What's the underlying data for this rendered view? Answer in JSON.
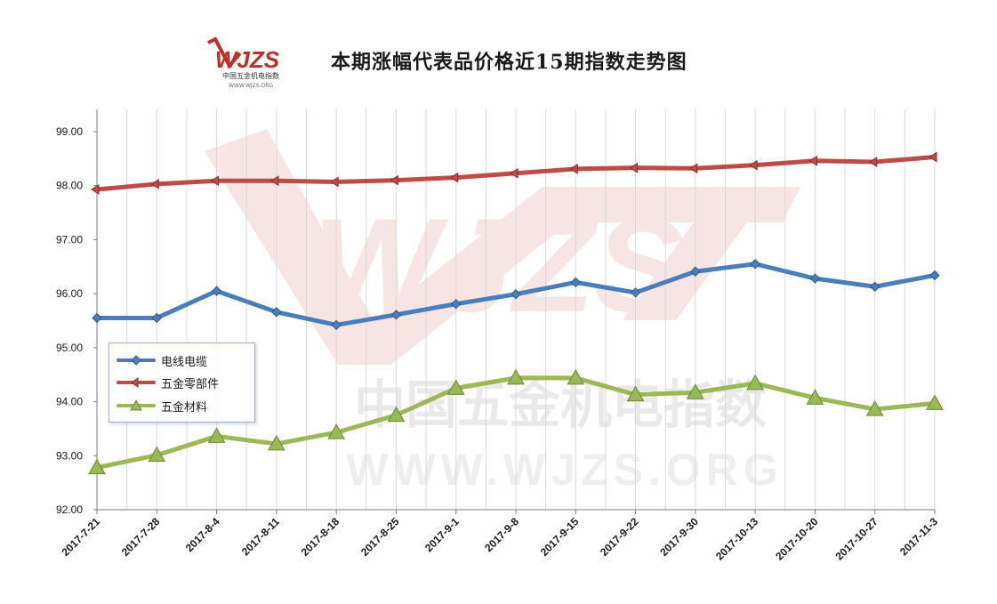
{
  "logo": {
    "text": "WJZS",
    "subtitle": "中国五金机电指数",
    "url_text": "WWW.WJZS.ORG"
  },
  "watermark": {
    "text": "WJZS",
    "cn_text": "中国五金机电指数",
    "url_text": "WWW.WJZS.ORG"
  },
  "colors": {
    "series1": "#4a7ebb",
    "series2": "#be4b48",
    "series3": "#98b954",
    "grid": "#d9d9d9"
  },
  "chart_data": {
    "type": "line",
    "title": "本期涨幅代表品价格近15期指数走势图",
    "x": [
      "2017-7-21",
      "2017-7-28",
      "2017-8-4",
      "2017-8-11",
      "2017-8-18",
      "2017-8-25",
      "2017-9-1",
      "2017-9-8",
      "2017-9-15",
      "2017-9-22",
      "2017-9-30",
      "2017-10-13",
      "2017-10-20",
      "2017-10-27",
      "2017-11-3"
    ],
    "ylim": [
      92.0,
      99.0
    ],
    "yticks": [
      "92.00",
      "93.00",
      "94.00",
      "95.00",
      "96.00",
      "97.00",
      "98.00",
      "99.00"
    ],
    "grid": "vertical",
    "legend_position": "left",
    "series": [
      {
        "name": "电线电缆",
        "marker": "diamond",
        "values": [
          95.55,
          95.55,
          96.05,
          95.66,
          95.42,
          95.61,
          95.81,
          95.99,
          96.21,
          96.02,
          96.41,
          96.55,
          96.28,
          96.13,
          96.34
        ]
      },
      {
        "name": "五金零部件",
        "marker": "arrow",
        "values": [
          97.93,
          98.03,
          98.09,
          98.09,
          98.07,
          98.1,
          98.15,
          98.23,
          98.31,
          98.33,
          98.32,
          98.38,
          98.46,
          98.44,
          98.53
        ]
      },
      {
        "name": "五金材料",
        "marker": "triangle",
        "values": [
          92.78,
          93.01,
          93.36,
          93.22,
          93.43,
          93.75,
          94.25,
          94.44,
          94.44,
          94.13,
          94.17,
          94.34,
          94.07,
          93.86,
          93.97
        ]
      }
    ]
  }
}
